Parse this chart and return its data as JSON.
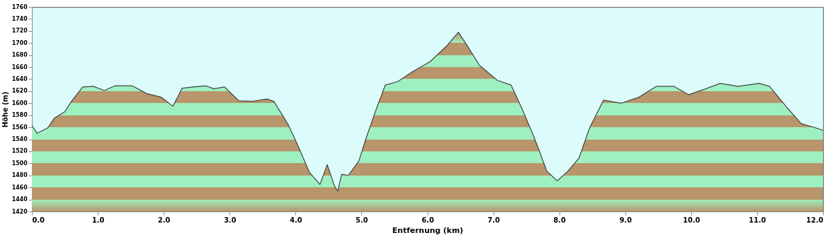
{
  "chart_data": {
    "type": "area",
    "xlabel": "Entfernung   (km)",
    "ylabel": "Höhe (m)",
    "x": [
      0,
      0.08,
      0.24,
      0.34,
      0.5,
      0.6,
      0.77,
      0.93,
      1.1,
      1.26,
      1.52,
      1.74,
      1.96,
      2.14,
      2.28,
      2.44,
      2.63,
      2.76,
      2.92,
      3.14,
      3.35,
      3.57,
      3.67,
      3.89,
      4.05,
      4.21,
      4.37,
      4.48,
      4.59,
      4.64,
      4.7,
      4.8,
      4.96,
      5.07,
      5.23,
      5.36,
      5.55,
      5.77,
      6.04,
      6.3,
      6.47,
      6.63,
      6.79,
      7.06,
      7.27,
      7.43,
      7.6,
      7.7,
      7.81,
      7.97,
      8.13,
      8.3,
      8.46,
      8.67,
      8.94,
      9.21,
      9.47,
      9.74,
      9.96,
      10.17,
      10.44,
      10.71,
      11.03,
      11.19,
      11.46,
      11.67,
      11.89,
      12
    ],
    "series": [
      {
        "color": "#b8956a",
        "values": [
          1563,
          1550,
          1559,
          1575,
          1586,
          1603,
          1627,
          1628,
          1621,
          1629,
          1629,
          1616,
          1610,
          1595,
          1625,
          1627,
          1629,
          1624,
          1627,
          1604,
          1603,
          1607,
          1603,
          1564,
          1526,
          1485,
          1465,
          1498,
          1462,
          1454,
          1482,
          1480,
          1504,
          1542,
          1592,
          1630,
          1636,
          1652,
          1669,
          1696,
          1718,
          1691,
          1663,
          1638,
          1630,
          1592,
          1548,
          1520,
          1487,
          1471,
          1487,
          1509,
          1559,
          1605,
          1600,
          1610,
          1628,
          1628,
          1614,
          1622,
          1633,
          1628,
          1633,
          1628,
          1592,
          1566,
          1559,
          1555
        ]
      }
    ],
    "xlim": [
      0,
      12
    ],
    "xticks": [
      {
        "value": 0,
        "label": "0.0"
      },
      {
        "value": 1,
        "label": "1.0"
      },
      {
        "value": 2,
        "label": "2.0"
      },
      {
        "value": 3,
        "label": "3.0"
      },
      {
        "value": 4,
        "label": "4.0"
      },
      {
        "value": 5,
        "label": "5.0"
      },
      {
        "value": 6,
        "label": "6.0"
      },
      {
        "value": 7,
        "label": "7.0"
      },
      {
        "value": 8,
        "label": "8.0"
      },
      {
        "value": 9,
        "label": "9.0"
      },
      {
        "value": 10,
        "label": "10.0"
      },
      {
        "value": 11,
        "label": "11.0"
      },
      {
        "value": 12,
        "label": "12.0"
      }
    ],
    "ylim": [
      1420,
      1760
    ],
    "yticks": [
      1420,
      1440,
      1460,
      1480,
      1500,
      1520,
      1540,
      1560,
      1580,
      1600,
      1620,
      1640,
      1660,
      1680,
      1700,
      1720,
      1740,
      1760
    ],
    "grid": false
  }
}
